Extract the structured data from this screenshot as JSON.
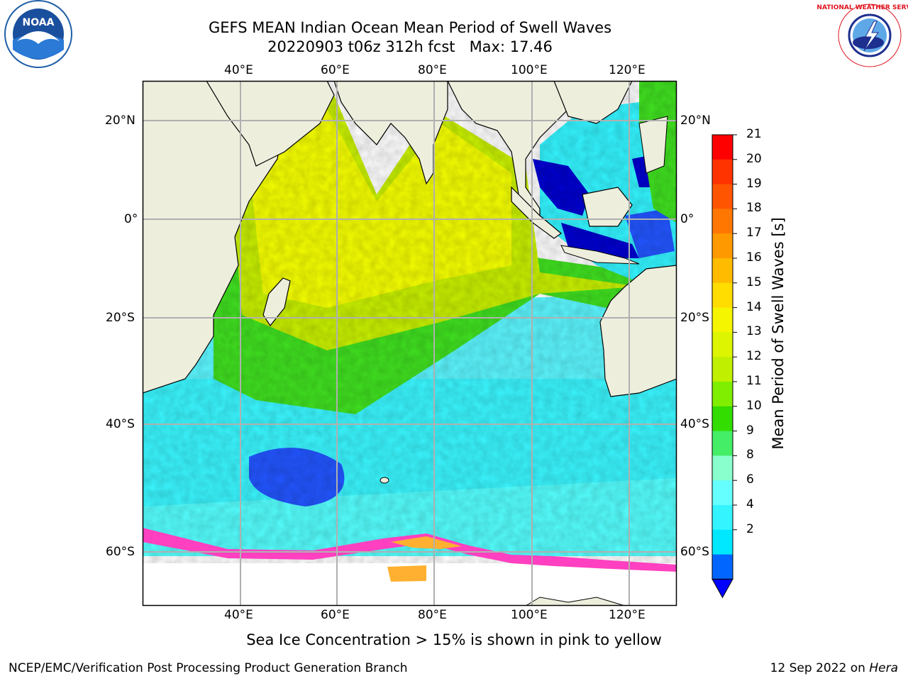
{
  "title": {
    "line1": "GEFS MEAN Indian Ocean Mean Period of Swell Waves",
    "line2": "20220903 t06z 312h fcst   Max: 17.46"
  },
  "logos": {
    "noaa_text": "NOAA",
    "nws_text": "NATIONAL WEATHER SERVICE"
  },
  "map": {
    "lon_labels": [
      "40°E",
      "60°E",
      "80°E",
      "100°E",
      "120°E"
    ],
    "lat_labels": [
      "20°N",
      "0°",
      "20°S",
      "40°S",
      "60°S"
    ],
    "ocean_colors": {
      "cyan": "#00f0ff",
      "light_cyan": "#55ffff",
      "green": "#40e020",
      "yellow_green": "#c8f000",
      "yellow": "#f5ff00",
      "blue": "#2255ff",
      "deep_blue": "#0000d0",
      "land": "#eeeedd",
      "ice_pink": "#ff40c0",
      "ice_orange": "#ffb030"
    }
  },
  "colorbar": {
    "label": "Mean Period of Swell Waves [s]",
    "ticks": [
      "21",
      "20",
      "19",
      "18",
      "17",
      "16",
      "15",
      "14",
      "13",
      "12",
      "11",
      "10",
      "9",
      "8",
      "6",
      "4",
      "2"
    ],
    "colors": [
      "#ff0000",
      "#ff3300",
      "#ff5500",
      "#ff7700",
      "#ff9900",
      "#ffbb00",
      "#ffdd00",
      "#f5f500",
      "#ddf500",
      "#c0f000",
      "#80ee00",
      "#33dd00",
      "#44ee66",
      "#88ffcc",
      "#66ffff",
      "#33f4ff",
      "#00e8ff",
      "#0066ff",
      "#0000ff"
    ]
  },
  "caption": "Sea Ice Concentration > 15% is shown in pink to yellow",
  "footer": {
    "left": "NCEP/EMC/Verification Post Processing Product Generation Branch",
    "right_date": "12 Sep 2022 on ",
    "right_machine": "Hera"
  }
}
